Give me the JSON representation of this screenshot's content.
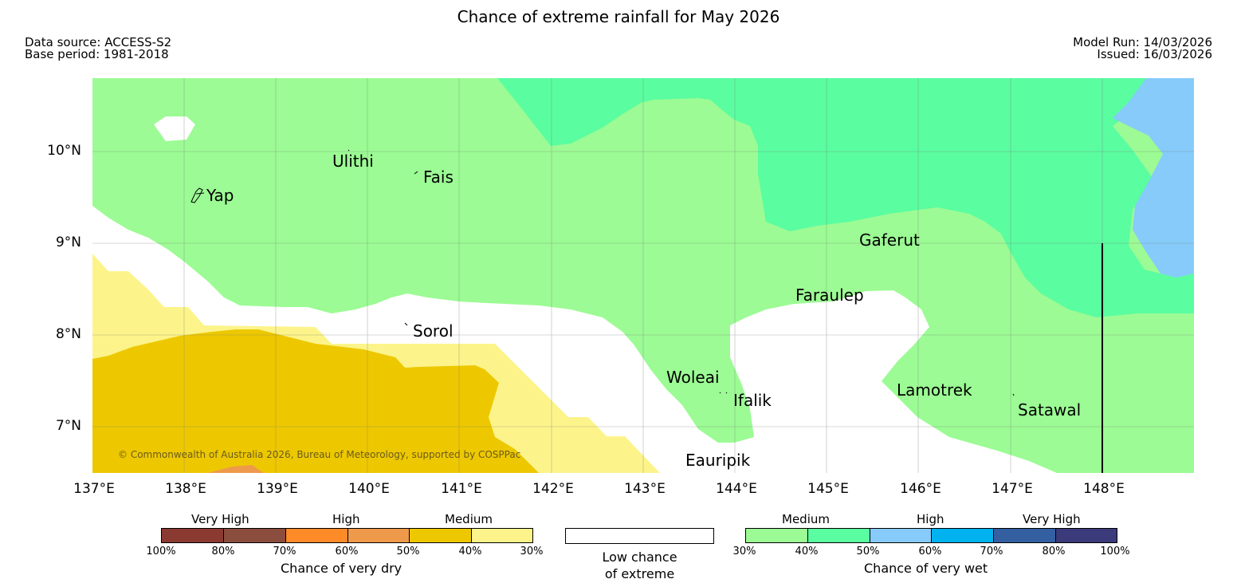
{
  "title": "Chance of extreme rainfall for May 2026",
  "data_source": "Data source: ACCESS-S2",
  "base_period": "Base period: 1981-2018",
  "model_run": "Model Run: 14/03/2026",
  "issued": "Issued: 16/03/2026",
  "lat_labels": [
    "10°N",
    "9°N",
    "8°N",
    "7°N"
  ],
  "lon_labels": [
    "137°E",
    "138°E",
    "139°E",
    "140°E",
    "141°E",
    "142°E",
    "143°E",
    "144°E",
    "145°E",
    "146°E",
    "147°E",
    "148°E"
  ],
  "places": {
    "yap": "Yap",
    "ulithi": "Ulithi",
    "fais": "Fais",
    "sorol": "Sorol",
    "gaferut": "Gaferut",
    "faraulep": "Faraulep",
    "woleai": "Woleai",
    "ifalik": "Ifalik",
    "lamotrek": "Lamotrek",
    "satawal": "Satawal",
    "eauripik": "Eauripik"
  },
  "copyright": "© Commonwealth of Australia 2026, Bureau of Meteorology, supported by COSPPac",
  "legend": {
    "dry": {
      "categories": [
        "Very High",
        "High",
        "Medium"
      ],
      "ticks": [
        "100%",
        "80%",
        "70%",
        "60%",
        "50%",
        "40%",
        "30%"
      ],
      "colors": [
        "#8b3a32",
        "#8b4e3e",
        "#ff8a28",
        "#ee9a4a",
        "#edc800",
        "#fcf48a"
      ],
      "title": "Chance of very dry"
    },
    "low": {
      "line1": "Low chance",
      "line2": "of extreme"
    },
    "wet": {
      "categories": [
        "Medium",
        "High",
        "Very High"
      ],
      "ticks": [
        "30%",
        "40%",
        "50%",
        "60%",
        "70%",
        "80%",
        "100%"
      ],
      "colors": [
        "#9cfb94",
        "#5afda0",
        "#86cbfa",
        "#00b2f0",
        "#345fa1",
        "#3b3a7a"
      ],
      "title": "Chance of very wet"
    }
  }
}
